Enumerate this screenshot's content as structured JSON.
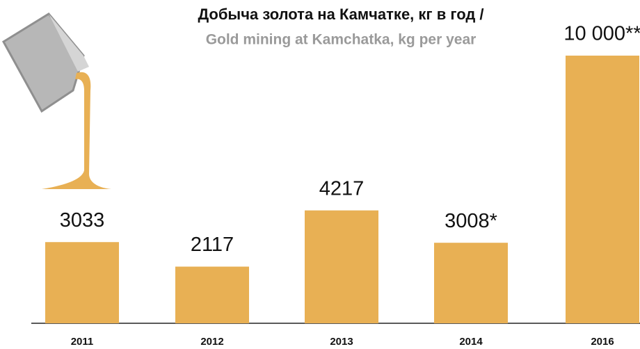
{
  "chart_data": {
    "type": "bar",
    "title": "Добыча золота на Камчатке, кг в год /",
    "subtitle": "Gold mining at Kamchatka, kg per year",
    "categories": [
      "2011",
      "2012",
      "2013",
      "2014",
      "2016"
    ],
    "values": [
      3033,
      2117,
      4217,
      3008,
      10000
    ],
    "value_labels": [
      "3033",
      "2117",
      "4217",
      "3008*",
      "10 000**"
    ],
    "color": "#e8b054"
  }
}
